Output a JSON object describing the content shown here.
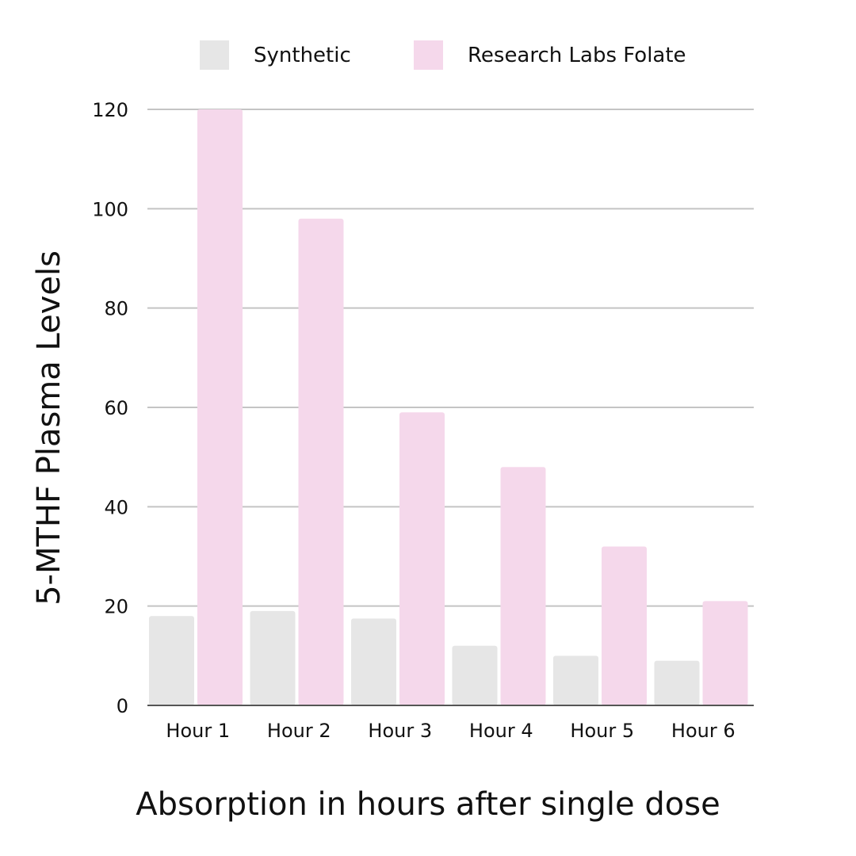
{
  "chart_data": {
    "type": "bar",
    "title": "",
    "xlabel": "Absorption in hours after single dose",
    "ylabel": "5-MTHF Plasma Levels",
    "categories": [
      "Hour 1",
      "Hour 2",
      "Hour 3",
      "Hour 4",
      "Hour 5",
      "Hour 6"
    ],
    "series": [
      {
        "name": "Synthetic",
        "color": "#e6e6e6",
        "values": [
          18,
          19,
          17.5,
          12,
          10,
          9
        ]
      },
      {
        "name": "Research Labs Folate",
        "color": "#f5d8eb",
        "values": [
          120,
          98,
          59,
          48,
          32,
          21
        ]
      }
    ],
    "ylim": [
      0,
      120
    ],
    "yticks": [
      0,
      20,
      40,
      60,
      80,
      100,
      120
    ],
    "grid": true,
    "legend_position": "top"
  }
}
